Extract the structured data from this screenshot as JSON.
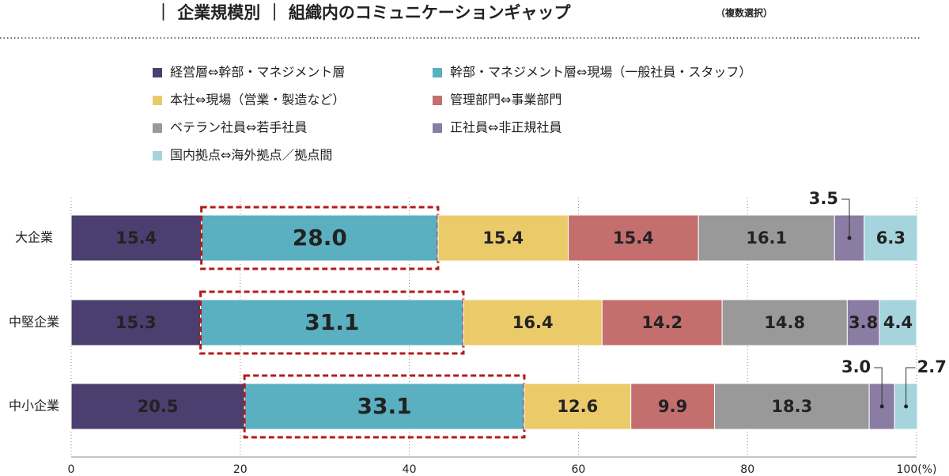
{
  "chart_data": {
    "type": "stacked-bar-horizontal",
    "title": "｜ 企業規模別 ｜ 組織内のコミュニケーションギャップ",
    "subtitle": "（複数選択）",
    "categories": [
      "大企業",
      "中堅企業",
      "中小企業"
    ],
    "series": [
      {
        "name": "経営層⇔幹部・マネジメント層",
        "color": "#4a3f6e",
        "values": [
          15.4,
          15.3,
          20.5
        ]
      },
      {
        "name": "幹部・マネジメント層⇔現場（一般社員・スタッフ）",
        "color": "#5ab0c0",
        "values": [
          28.0,
          31.1,
          33.1
        ],
        "value_labels": [
          "28.0",
          "31.1",
          "33.1"
        ]
      },
      {
        "name": "本社⇔現場（営業・製造など）",
        "color": "#ebca6a",
        "values": [
          15.4,
          16.4,
          12.6
        ]
      },
      {
        "name": "管理部門⇔事業部門",
        "color": "#c46e6e",
        "values": [
          15.4,
          14.2,
          9.9
        ]
      },
      {
        "name": "ベテラン社員⇔若手社員",
        "color": "#999999",
        "values": [
          16.1,
          14.8,
          18.3
        ]
      },
      {
        "name": "正社員⇔非正規社員",
        "color": "#8a7ca3",
        "values": [
          3.5,
          3.8,
          3.0
        ],
        "value_labels": [
          "3.5",
          "3.8",
          "3.0"
        ]
      },
      {
        "name": "国内拠点⇔海外拠点／拠点間",
        "color": "#a6d4dd",
        "values": [
          6.3,
          4.4,
          2.7
        ]
      }
    ],
    "xlim": [
      0,
      100
    ],
    "xticks": [
      0,
      20,
      40,
      60,
      80,
      {
        "value": 100,
        "label": "100(%)"
      }
    ],
    "grid": true
  }
}
